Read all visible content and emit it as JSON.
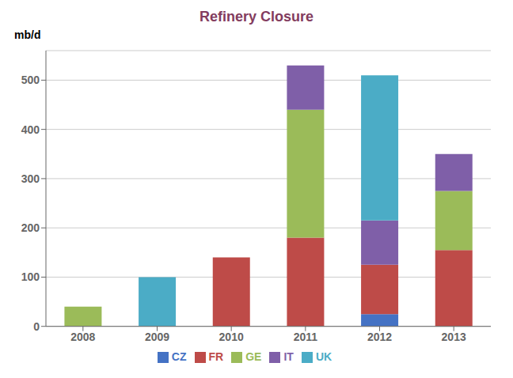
{
  "chart_data": {
    "type": "bar",
    "stacked": true,
    "title": "Refinery Closure",
    "ylabel": "mb/d",
    "categories": [
      "2008",
      "2009",
      "2010",
      "2011",
      "2012",
      "2013"
    ],
    "series": [
      {
        "name": "CZ",
        "color": "#4472C4",
        "values": [
          0,
          0,
          0,
          0,
          25,
          0
        ]
      },
      {
        "name": "FR",
        "color": "#BE4B48",
        "values": [
          0,
          0,
          140,
          180,
          100,
          155
        ]
      },
      {
        "name": "GE",
        "color": "#9BBB59",
        "values": [
          40,
          0,
          0,
          260,
          0,
          120
        ]
      },
      {
        "name": "IT",
        "color": "#7F5FA8",
        "values": [
          0,
          0,
          0,
          90,
          90,
          75
        ]
      },
      {
        "name": "UK",
        "color": "#4BACC6",
        "values": [
          0,
          100,
          0,
          0,
          295,
          0
        ]
      }
    ],
    "ylim": [
      0,
      560
    ],
    "yticks": [
      0,
      100,
      200,
      300,
      400,
      500
    ],
    "grid": true,
    "legend": "bottom"
  }
}
